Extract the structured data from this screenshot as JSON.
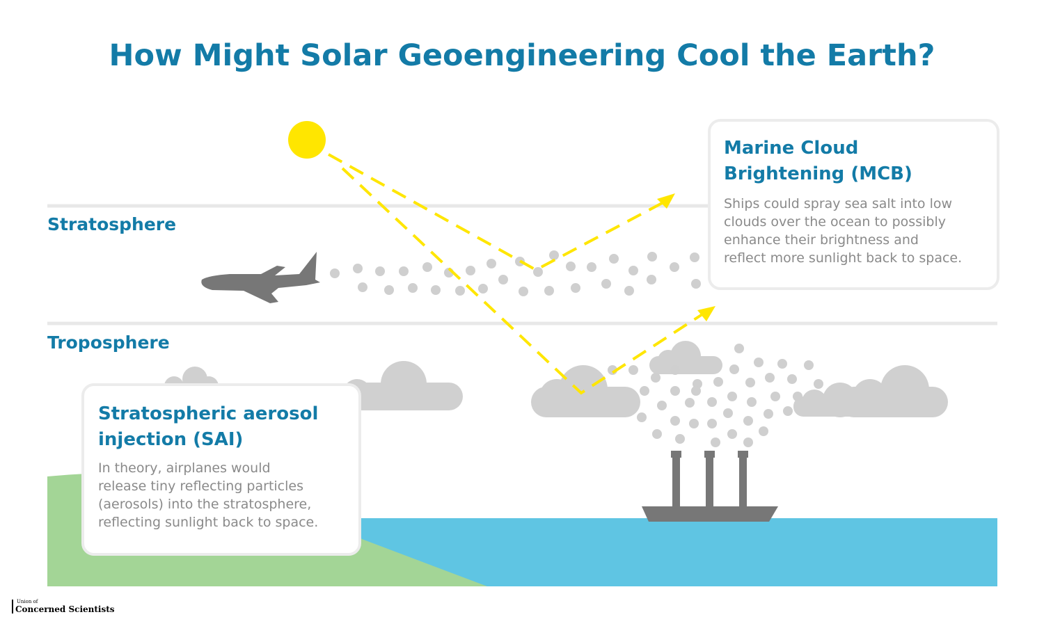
{
  "header": {
    "title": "How Might Solar Geoengineering Cool the Earth?"
  },
  "layers": {
    "stratosphere": "Stratosphere",
    "troposphere": "Troposphere"
  },
  "boxes": [
    {
      "title_lines": [
        "Marine Cloud",
        "Brightening (MCB)"
      ],
      "body_lines": [
        "Ships could spray sea salt into low",
        "clouds over the ocean to possibly",
        "enhance their brightness and",
        "reflect more sunlight back to space."
      ]
    },
    {
      "title_lines": [
        "Stratospheric aerosol",
        "injection (SAI)"
      ],
      "body_lines": [
        "In theory, airplanes would",
        "release tiny reflecting particles",
        "(aerosols) into the stratosphere,",
        "reflecting sunlight back to space."
      ]
    }
  ],
  "footer": {
    "logo_small": "Union of",
    "logo_main": "Concerned Scientists"
  }
}
